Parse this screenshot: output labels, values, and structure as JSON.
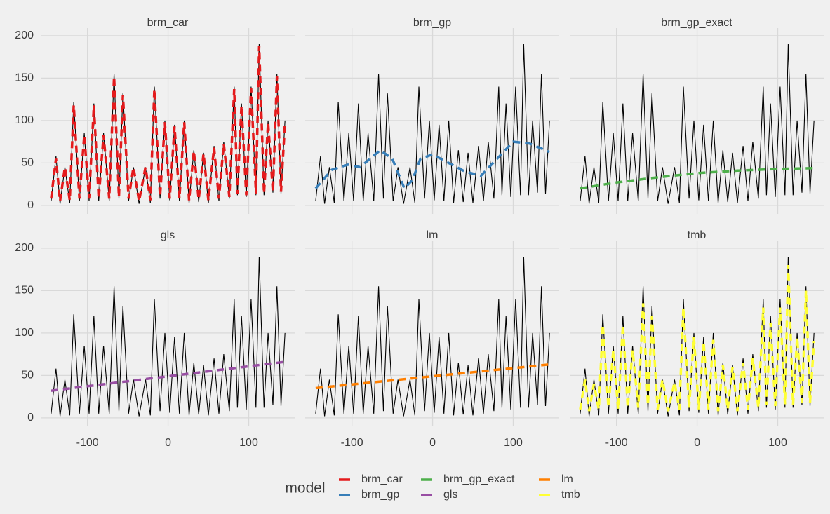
{
  "chart_data": {
    "type": "line",
    "xlim": [
      -158,
      157
    ],
    "ylim": [
      -10,
      209
    ],
    "xticks": [
      -100,
      0,
      100
    ],
    "yticks": [
      0,
      50,
      100,
      150,
      200
    ],
    "grid": true,
    "legend_title": "model",
    "observed": {
      "color": "#000000",
      "x": [
        -145,
        -139,
        -134,
        -128,
        -122,
        -117,
        -110,
        -104,
        -98,
        -92,
        -86,
        -80,
        -73,
        -67,
        -61,
        -56,
        -49,
        -43,
        -36,
        -28,
        -22,
        -17,
        -10,
        -4,
        2,
        8,
        14,
        20,
        26,
        32,
        38,
        44,
        50,
        57,
        63,
        69,
        76,
        82,
        86,
        91,
        97,
        103,
        109,
        113,
        119,
        124,
        130,
        135,
        140,
        145
      ],
      "values": [
        5,
        58,
        2,
        45,
        3,
        122,
        5,
        85,
        5,
        120,
        5,
        85,
        5,
        155,
        8,
        132,
        5,
        45,
        2,
        45,
        3,
        140,
        8,
        100,
        6,
        95,
        5,
        100,
        3,
        65,
        4,
        62,
        3,
        70,
        5,
        75,
        8,
        140,
        12,
        120,
        10,
        140,
        12,
        190,
        12,
        100,
        15,
        155,
        14,
        100
      ]
    },
    "facets": [
      {
        "title": "brm_car",
        "series": [
          {
            "name": "brm_car",
            "color": "#e41a1c",
            "x": [
              -145,
              -139,
              -134,
              -128,
              -122,
              -117,
              -110,
              -104,
              -98,
              -92,
              -86,
              -80,
              -73,
              -67,
              -61,
              -56,
              -49,
              -43,
              -36,
              -28,
              -22,
              -17,
              -10,
              -4,
              2,
              8,
              14,
              20,
              26,
              32,
              38,
              44,
              50,
              57,
              63,
              69,
              76,
              82,
              86,
              91,
              97,
              103,
              109,
              113,
              119,
              124,
              130,
              135,
              140,
              145
            ],
            "values": [
              8,
              55,
              5,
              45,
              6,
              118,
              8,
              83,
              8,
              118,
              8,
              83,
              8,
              152,
              10,
              130,
              8,
              45,
              5,
              45,
              6,
              137,
              10,
              98,
              8,
              93,
              8,
              98,
              6,
              64,
              7,
              61,
              6,
              68,
              8,
              73,
              10,
              137,
              14,
              118,
              12,
              138,
              14,
              188,
              14,
              98,
              16,
              152,
              16,
              98
            ]
          }
        ]
      },
      {
        "title": "brm_gp",
        "series": [
          {
            "name": "brm_gp",
            "color": "#377eb8",
            "x": [
              -145,
              -125,
              -105,
              -90,
              -65,
              -50,
              -35,
              -25,
              -15,
              0,
              20,
              40,
              60,
              80,
              100,
              120,
              145
            ],
            "values": [
              20,
              42,
              48,
              45,
              65,
              55,
              20,
              30,
              55,
              60,
              50,
              40,
              35,
              55,
              75,
              73,
              63
            ]
          }
        ]
      },
      {
        "title": "brm_gp_exact",
        "series": [
          {
            "name": "brm_gp_exact",
            "color": "#4daf4a",
            "x": [
              -145,
              -100,
              -50,
              0,
              50,
              100,
              145
            ],
            "values": [
              20,
              27,
              33,
              38,
              41,
              43,
              44
            ]
          }
        ]
      },
      {
        "title": "gls",
        "series": [
          {
            "name": "gls",
            "color": "#984ea3",
            "x": [
              -145,
              145
            ],
            "values": [
              32,
              66
            ]
          }
        ]
      },
      {
        "title": "lm",
        "series": [
          {
            "name": "lm",
            "color": "#ff7f00",
            "x": [
              -145,
              145
            ],
            "values": [
              35,
              63
            ]
          }
        ]
      },
      {
        "title": "tmb",
        "series": [
          {
            "name": "tmb",
            "color": "#ffff33",
            "x": [
              -145,
              -139,
              -134,
              -128,
              -122,
              -117,
              -110,
              -104,
              -98,
              -92,
              -86,
              -80,
              -73,
              -67,
              -61,
              -56,
              -49,
              -43,
              -36,
              -28,
              -22,
              -17,
              -10,
              -4,
              2,
              8,
              14,
              20,
              26,
              32,
              38,
              44,
              50,
              57,
              63,
              69,
              76,
              82,
              86,
              91,
              97,
              103,
              109,
              113,
              119,
              124,
              130,
              135,
              140,
              145
            ],
            "values": [
              10,
              45,
              8,
              40,
              10,
              110,
              12,
              80,
              10,
              110,
              12,
              80,
              12,
              135,
              15,
              120,
              10,
              45,
              8,
              42,
              10,
              130,
              12,
              95,
              10,
              90,
              10,
              92,
              8,
              62,
              10,
              60,
              8,
              65,
              10,
              70,
              12,
              130,
              15,
              112,
              14,
              130,
              16,
              180,
              15,
              95,
              18,
              150,
              18,
              90
            ]
          }
        ]
      }
    ]
  }
}
